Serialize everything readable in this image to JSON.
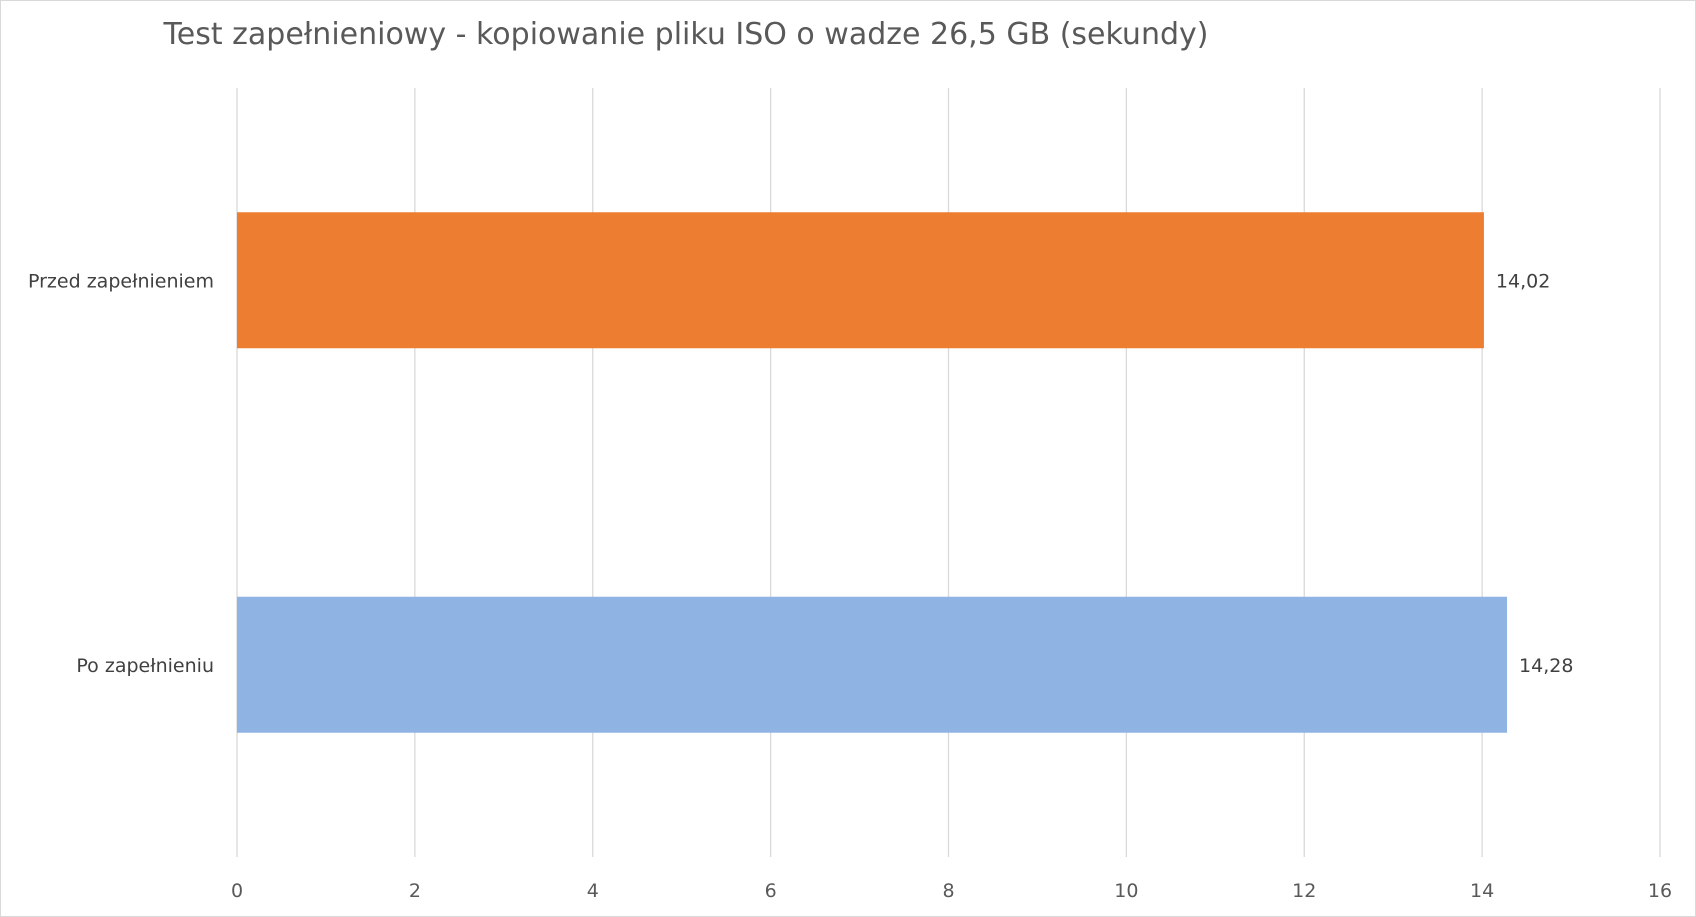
{
  "chart_data": {
    "type": "bar",
    "orientation": "horizontal",
    "title": "Test zapełnieniowy - kopiowanie pliku ISO o wadze 26,5 GB (sekundy)",
    "categories": [
      "Przed zapełnieniem",
      "Po zapełnieniu"
    ],
    "values": [
      14.02,
      14.28
    ],
    "value_labels": [
      "14,02",
      "14,28"
    ],
    "colors": [
      "#ED7D31",
      "#8FB3E3"
    ],
    "xlim": [
      0,
      16
    ],
    "xticks": [
      0,
      2,
      4,
      6,
      8,
      10,
      12,
      14,
      16
    ],
    "grid": true,
    "xlabel": "",
    "ylabel": ""
  }
}
